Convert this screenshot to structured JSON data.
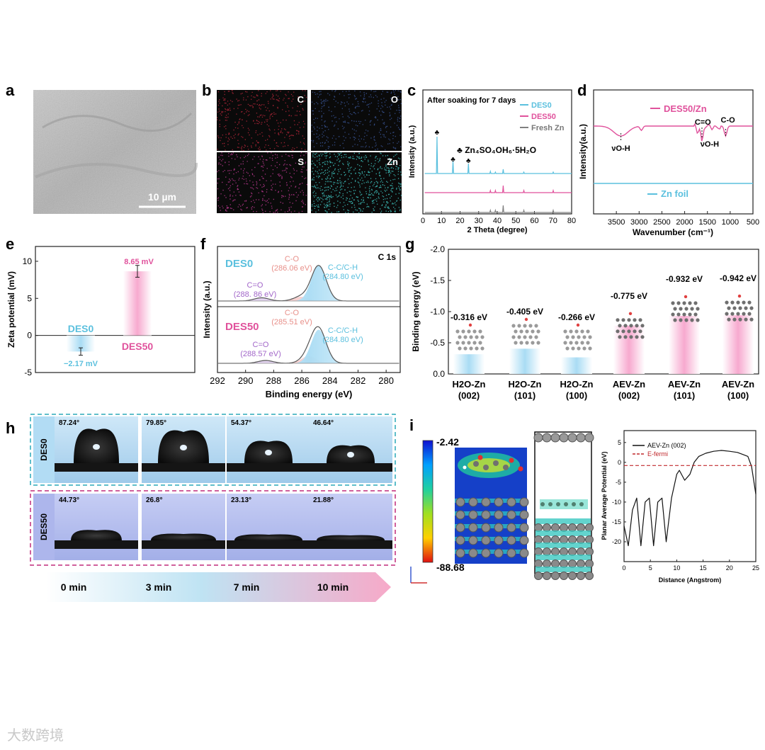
{
  "panels": {
    "a": {
      "label": "a",
      "scale_bar": "10 µm"
    },
    "b": {
      "label": "b",
      "maps": [
        "C",
        "O",
        "S",
        "Zn"
      ],
      "colors": [
        "#c0283c",
        "#3c5aa0",
        "#c83c9a",
        "#3cbcb8"
      ]
    },
    "c": {
      "label": "c",
      "annotation": "After soaking for 7 days",
      "phase": "♣ Zn₄SO₄OH₆·5H₂O"
    },
    "d": {
      "label": "d"
    },
    "e": {
      "label": "e"
    },
    "f": {
      "label": "f",
      "spectrum": "C 1s"
    },
    "g": {
      "label": "g"
    },
    "h": {
      "label": "h",
      "rows": [
        {
          "name": "DES0",
          "angles": [
            "87.24°",
            "79.85°",
            "54.37°",
            "46.64°"
          ]
        },
        {
          "name": "DES50",
          "angles": [
            "44.73°",
            "26.8°",
            "23.13°",
            "21.88°"
          ]
        }
      ],
      "times": [
        "0 min",
        "3 min",
        "7 min",
        "10 min"
      ]
    },
    "i": {
      "label": "i",
      "colorbar_max": "-2.42",
      "colorbar_min": "-88.68"
    }
  },
  "watermark": "大数跨境",
  "colors": {
    "des0": "#5bc0de",
    "des50": "#e0529c",
    "gray": "#808080"
  },
  "chart_data": [
    {
      "id": "c",
      "type": "line",
      "xlabel": "2 Theta (degree)",
      "ylabel": "Intensity (a.u.)",
      "xlim": [
        0,
        80
      ],
      "xticks": [
        0,
        10,
        20,
        30,
        40,
        50,
        60,
        70,
        80
      ],
      "series": [
        {
          "name": "DES0",
          "peaks_x": [
            7.6,
            16.2,
            24.5,
            36.3,
            39.0,
            43.2,
            54.3,
            70.1
          ]
        },
        {
          "name": "DES50",
          "peaks_x": [
            36.3,
            39.0,
            43.2,
            54.3,
            70.1
          ]
        },
        {
          "name": "Fresh Zn",
          "peaks_x": [
            36.3,
            39.0,
            43.2,
            54.3,
            70.1
          ]
        }
      ]
    },
    {
      "id": "d",
      "type": "line",
      "xlabel": "Wavenumber (cm⁻¹)",
      "ylabel": "Intensity(a.u.)",
      "xlim": [
        4000,
        500
      ],
      "xticks": [
        3500,
        3000,
        2500,
        2000,
        1500,
        1000,
        500
      ],
      "series": [
        {
          "name": "DES50/Zn"
        },
        {
          "name": "Zn foil"
        }
      ],
      "annotations": [
        "νO-H",
        "C=O",
        "νO-H",
        "C-O"
      ]
    },
    {
      "id": "e",
      "type": "bar",
      "ylabel": "Zeta potential (mV)",
      "ylim": [
        -5,
        12
      ],
      "yticks": [
        -5,
        0,
        5,
        10
      ],
      "categories": [
        "DES0",
        "DES50"
      ],
      "values": [
        -2.17,
        8.65
      ],
      "errors": [
        0.5,
        0.8
      ],
      "value_labels": [
        "−2.17 mV",
        "8.65 mV"
      ]
    },
    {
      "id": "f",
      "type": "line",
      "xlabel": "Binding energy (eV)",
      "ylabel": "Intensity (a.u.)",
      "xlim": [
        292,
        279
      ],
      "xticks": [
        292,
        290,
        288,
        286,
        284,
        282,
        280
      ],
      "samples": [
        {
          "name": "DES0",
          "peaks": [
            {
              "label": "C=O",
              "energy": "(288. 86 eV)",
              "x": 288.86,
              "height": 0.09
            },
            {
              "label": "C-O",
              "energy": "(286.06 eV)",
              "x": 286.06,
              "height": 0.12
            },
            {
              "label": "C-C/C-H",
              "energy": "(284.80 eV)",
              "x": 284.8,
              "height": 1.0
            }
          ]
        },
        {
          "name": "DES50",
          "peaks": [
            {
              "label": "C=O",
              "energy": "(288.57 eV)",
              "x": 288.57,
              "height": 0.08
            },
            {
              "label": "C-O",
              "energy": "(285.51 eV)",
              "x": 285.51,
              "height": 0.2
            },
            {
              "label": "C-C/C-H",
              "energy": "(284.80 eV)",
              "x": 284.8,
              "height": 0.95
            }
          ]
        }
      ]
    },
    {
      "id": "g",
      "type": "bar",
      "ylabel": "Binding energy (eV)",
      "ylim": [
        0,
        -2.0
      ],
      "yticks": [
        0.0,
        -0.5,
        -1.0,
        -1.5,
        -2.0
      ],
      "ytick_labels": [
        "0.0",
        "-0.5",
        "-1.0",
        "-1.5",
        "-2.0"
      ],
      "categories": [
        [
          "H2O-Zn",
          "(002)"
        ],
        [
          "H2O-Zn",
          "(101)"
        ],
        [
          "H2O-Zn",
          "(100)"
        ],
        [
          "AEV-Zn",
          "(002)"
        ],
        [
          "AEV-Zn",
          "(101)"
        ],
        [
          "AEV-Zn",
          "(100)"
        ]
      ],
      "values": [
        -0.316,
        -0.405,
        -0.266,
        -0.775,
        -0.932,
        -0.942
      ],
      "value_labels": [
        "-0.316 eV",
        "-0.405 eV",
        "-0.266 eV",
        "-0.775 eV",
        "-0.932 eV",
        "-0.942 eV"
      ]
    },
    {
      "id": "i",
      "type": "line",
      "xlabel": "Distance (Angstrom)",
      "ylabel": "Planar Average Potential (eV)",
      "xlim": [
        0,
        25
      ],
      "ylim": [
        -25,
        8
      ],
      "xticks": [
        0,
        5,
        10,
        15,
        20,
        25
      ],
      "yticks": [
        5,
        0,
        -5,
        -10,
        -15,
        -20
      ],
      "series": [
        {
          "name": "AEV-Zn (002)",
          "x": [
            0,
            0.8,
            1.6,
            2.4,
            3.2,
            4.0,
            4.8,
            5.6,
            6.4,
            7.2,
            8.0,
            9.0,
            10.0,
            10.5,
            11.5,
            12.5,
            13.3,
            14.2,
            15.5,
            17.0,
            18.5,
            20.0,
            21.5,
            22.5,
            23.5,
            24.2,
            25.0
          ],
          "y": [
            -16,
            -21,
            -12,
            -9,
            -21,
            -10,
            -9,
            -21,
            -10,
            -9,
            -20,
            -9,
            -3,
            -2,
            -4.5,
            -3,
            0,
            1.5,
            2.3,
            2.8,
            3.0,
            2.8,
            2.5,
            2.0,
            1.5,
            -1,
            -8
          ]
        },
        {
          "name": "E-fermi",
          "y_const": -0.8
        }
      ]
    }
  ]
}
